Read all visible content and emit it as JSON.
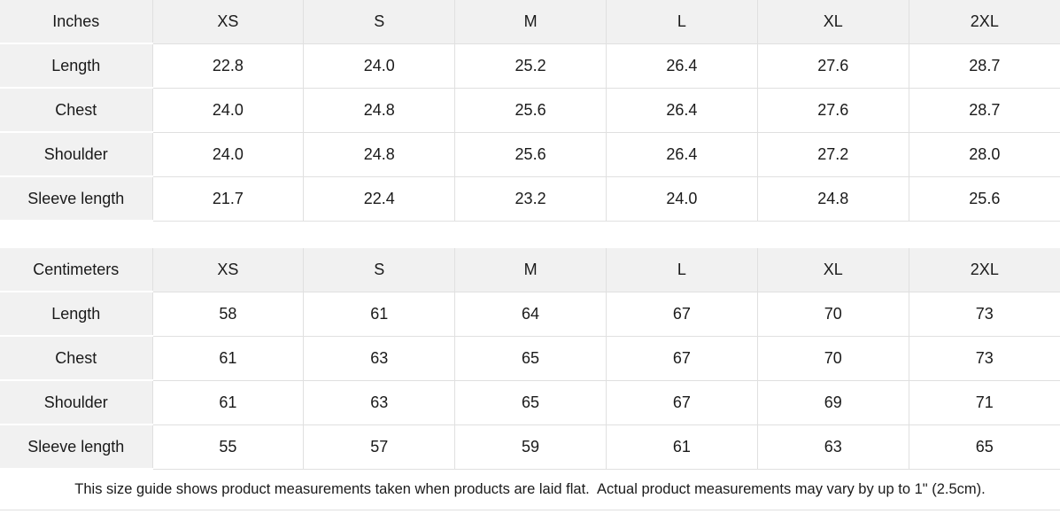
{
  "colors": {
    "header_bg": "#f1f1f1",
    "grid_border": "#e0e0e0",
    "row_gap": "#ffffff",
    "text": "#1a1a1a",
    "page_bg": "#ffffff"
  },
  "tables": [
    {
      "unit_label": "Inches",
      "sizes": [
        "XS",
        "S",
        "M",
        "L",
        "XL",
        "2XL"
      ],
      "rows": [
        {
          "label": "Length",
          "values": [
            "22.8",
            "24.0",
            "25.2",
            "26.4",
            "27.6",
            "28.7"
          ]
        },
        {
          "label": "Chest",
          "values": [
            "24.0",
            "24.8",
            "25.6",
            "26.4",
            "27.6",
            "28.7"
          ]
        },
        {
          "label": "Shoulder",
          "values": [
            "24.0",
            "24.8",
            "25.6",
            "26.4",
            "27.2",
            "28.0"
          ]
        },
        {
          "label": "Sleeve length",
          "values": [
            "21.7",
            "22.4",
            "23.2",
            "24.0",
            "24.8",
            "25.6"
          ]
        }
      ]
    },
    {
      "unit_label": "Centimeters",
      "sizes": [
        "XS",
        "S",
        "M",
        "L",
        "XL",
        "2XL"
      ],
      "rows": [
        {
          "label": "Length",
          "values": [
            "58",
            "61",
            "64",
            "67",
            "70",
            "73"
          ]
        },
        {
          "label": "Chest",
          "values": [
            "61",
            "63",
            "65",
            "67",
            "70",
            "73"
          ]
        },
        {
          "label": "Shoulder",
          "values": [
            "61",
            "63",
            "65",
            "67",
            "69",
            "71"
          ]
        },
        {
          "label": "Sleeve length",
          "values": [
            "55",
            "57",
            "59",
            "61",
            "63",
            "65"
          ]
        }
      ]
    }
  ],
  "footer_note": "This size guide shows product measurements taken when products are laid flat.  Actual product measurements may vary by up to 1\" (2.5cm)."
}
